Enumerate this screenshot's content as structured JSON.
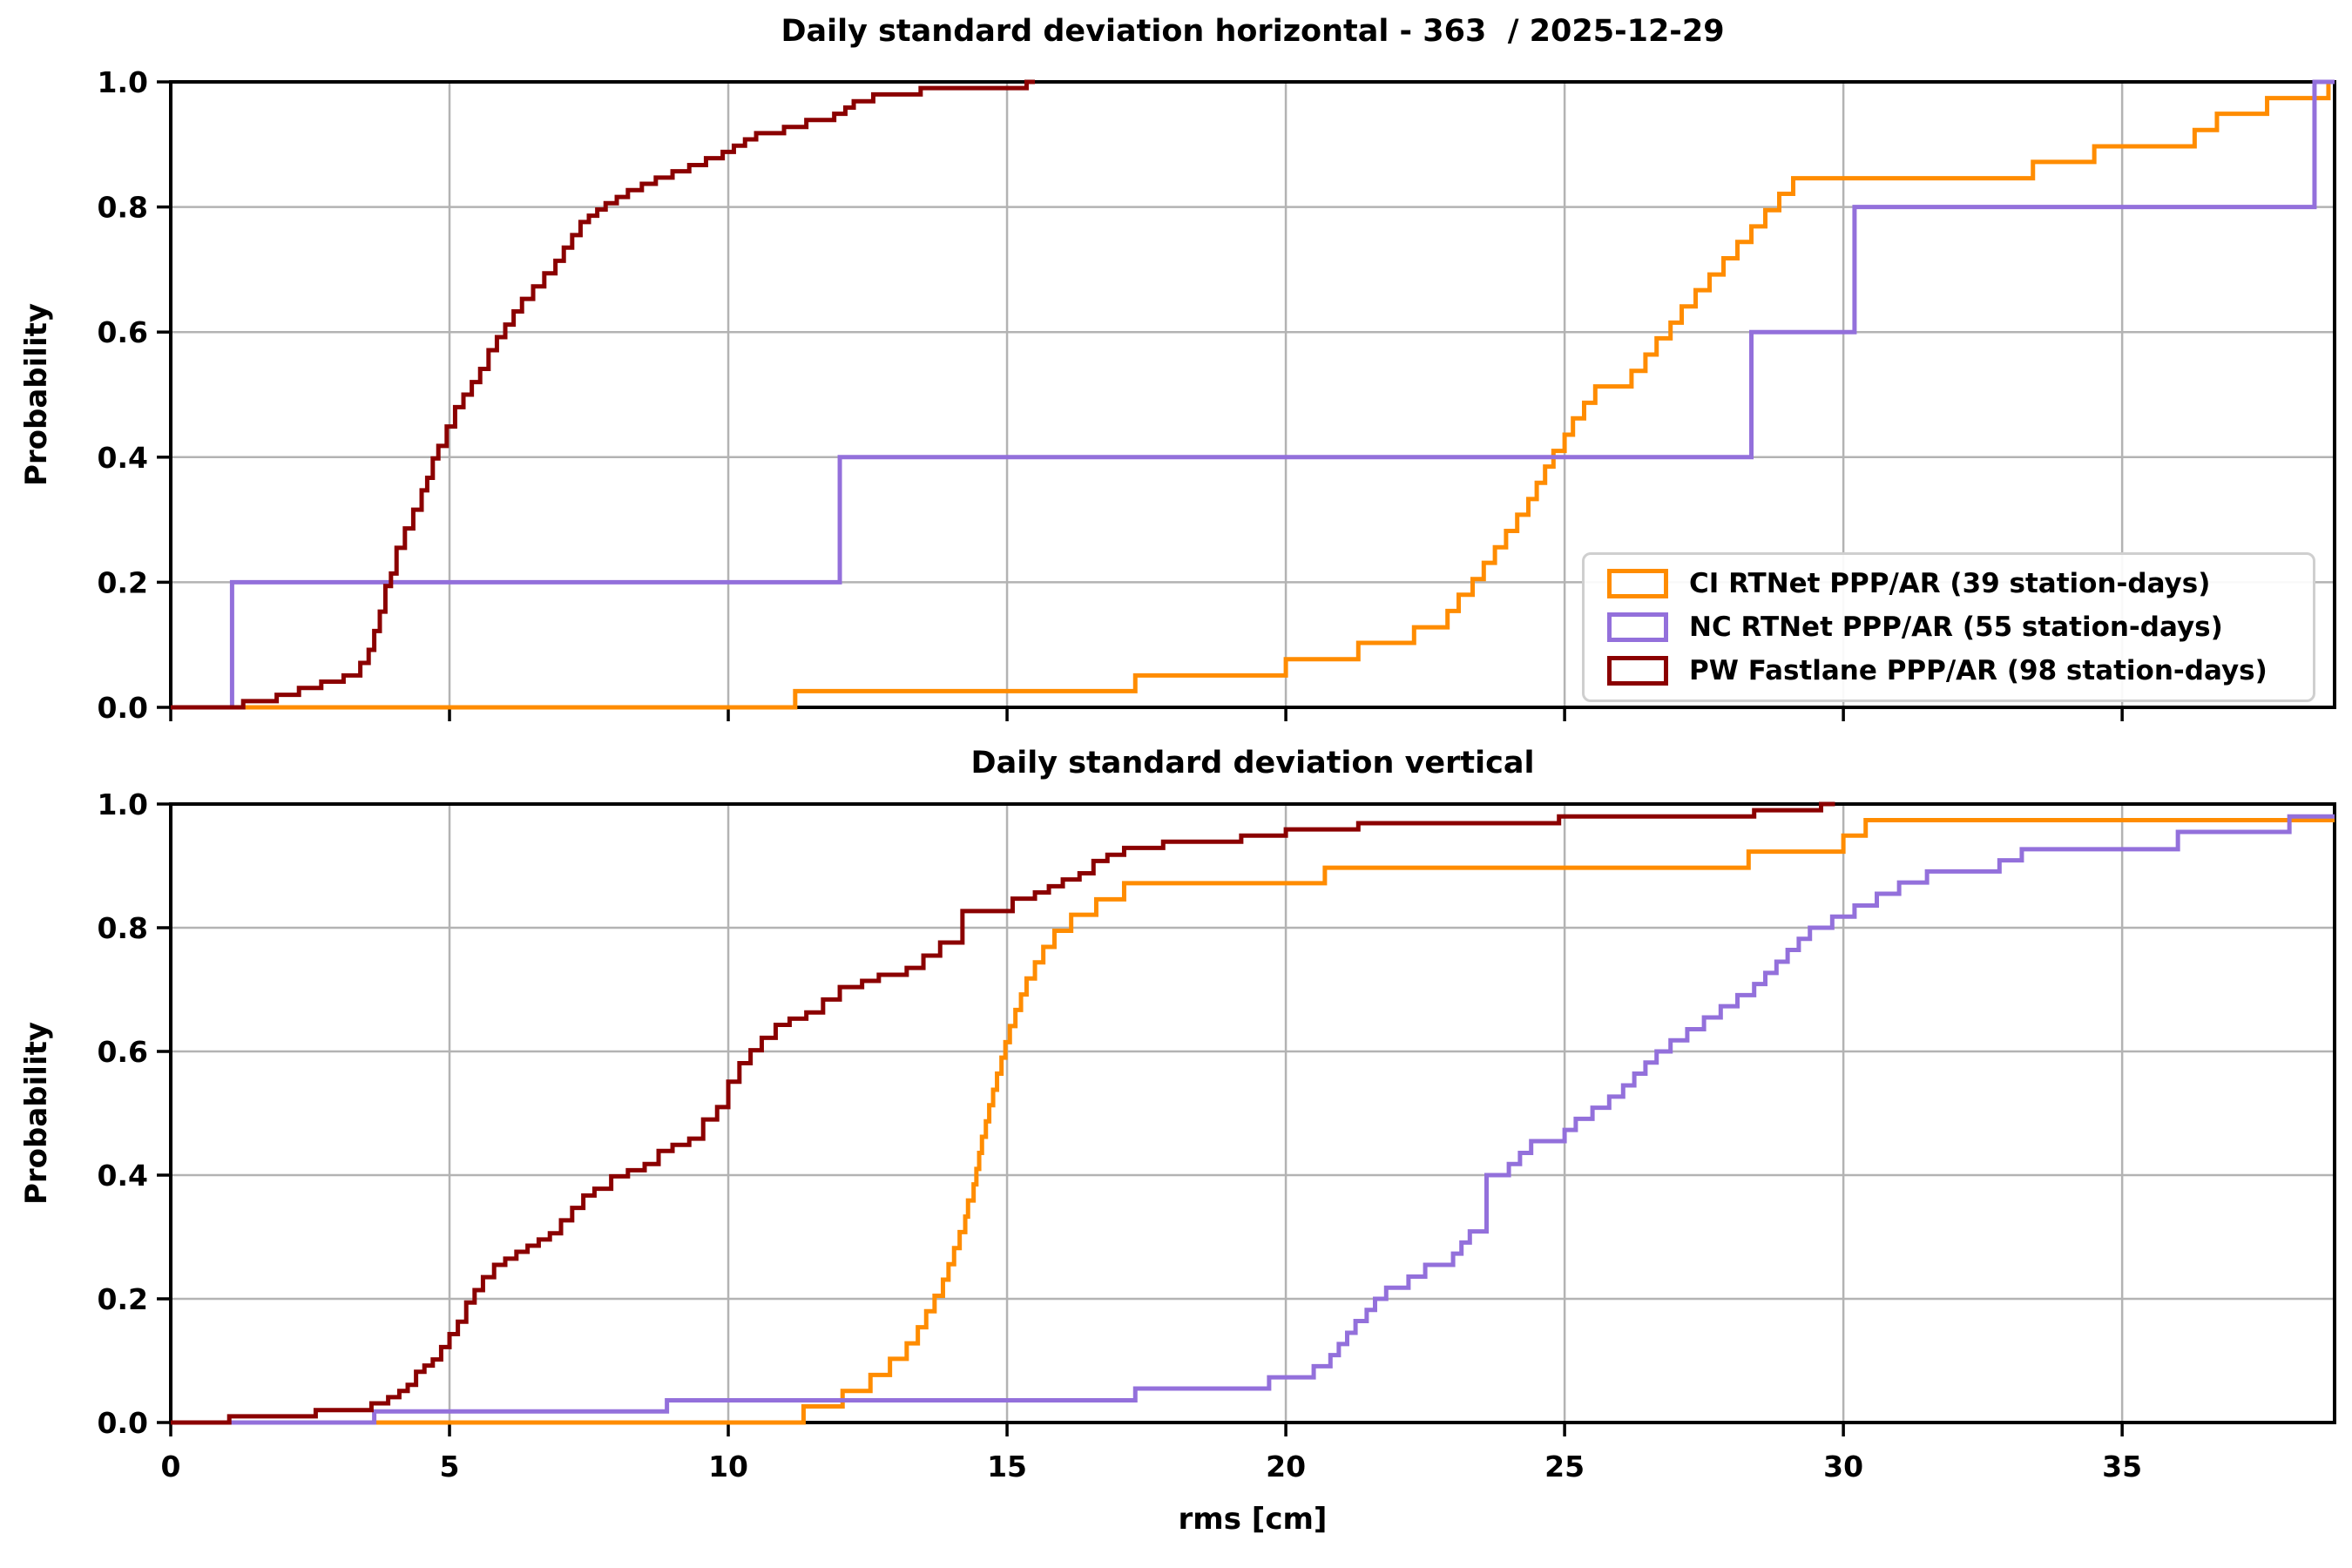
{
  "figure": {
    "xlabel": "rms [cm]",
    "ylabel": "Probability"
  },
  "legend": {
    "position": "lower-right-of-top-panel",
    "items": [
      {
        "label": "CI RTNet PPP/AR (39 station-days)",
        "color": "#FF8C00"
      },
      {
        "label": "NC RTNet PPP/AR (55 station-days)",
        "color": "#9370DB"
      },
      {
        "label": "PW Fastlane PPP/AR (98 station-days)",
        "color": "#8B0000"
      }
    ]
  },
  "chart_data": [
    {
      "type": "line",
      "subtype": "ecdf-step",
      "title": "Daily standard deviation horizontal - 363  / 2025-12-29",
      "xlabel": "",
      "ylabel": "Probability",
      "xlim": [
        0,
        38.81
      ],
      "ylim": [
        0,
        1.0
      ],
      "xticks": [
        0,
        5,
        10,
        15,
        20,
        25,
        30,
        35
      ],
      "yticks": [
        0.0,
        0.2,
        0.4,
        0.6,
        0.8,
        1.0
      ],
      "x_tick_labels_visible": false,
      "grid": true,
      "series": [
        {
          "name": "CI RTNet PPP/AR (39 station-days)",
          "color": "#FF8C00",
          "end_x": 38.81,
          "points": [
            [
              11.2,
              0.026
            ],
            [
              17.3,
              0.051
            ],
            [
              20.0,
              0.077
            ],
            [
              21.3,
              0.103
            ],
            [
              22.3,
              0.128
            ],
            [
              22.9,
              0.154
            ],
            [
              23.1,
              0.18
            ],
            [
              23.35,
              0.205
            ],
            [
              23.55,
              0.231
            ],
            [
              23.75,
              0.256
            ],
            [
              23.95,
              0.282
            ],
            [
              24.15,
              0.308
            ],
            [
              24.35,
              0.333
            ],
            [
              24.5,
              0.359
            ],
            [
              24.65,
              0.385
            ],
            [
              24.8,
              0.41
            ],
            [
              25.0,
              0.436
            ],
            [
              25.15,
              0.462
            ],
            [
              25.35,
              0.487
            ],
            [
              25.55,
              0.513
            ],
            [
              26.2,
              0.538
            ],
            [
              26.45,
              0.564
            ],
            [
              26.65,
              0.59
            ],
            [
              26.9,
              0.615
            ],
            [
              27.1,
              0.641
            ],
            [
              27.35,
              0.667
            ],
            [
              27.6,
              0.692
            ],
            [
              27.85,
              0.718
            ],
            [
              28.1,
              0.744
            ],
            [
              28.35,
              0.769
            ],
            [
              28.6,
              0.795
            ],
            [
              28.85,
              0.821
            ],
            [
              29.1,
              0.846
            ],
            [
              33.4,
              0.872
            ],
            [
              34.5,
              0.897
            ],
            [
              36.3,
              0.923
            ],
            [
              36.7,
              0.949
            ],
            [
              37.6,
              0.974
            ],
            [
              38.7,
              1.0
            ]
          ]
        },
        {
          "name": "NC RTNet PPP/AR (55 station-days)",
          "color": "#9370DB",
          "end_x": 38.81,
          "points": [
            [
              1.1,
              0.2
            ],
            [
              12.0,
              0.4
            ],
            [
              28.35,
              0.6
            ],
            [
              30.2,
              0.8
            ],
            [
              38.45,
              1.0
            ]
          ]
        },
        {
          "name": "PW Fastlane PPP/AR (98 station-days)",
          "color": "#8B0000",
          "end_x": 15.5,
          "points": [
            [
              1.3,
              0.01
            ],
            [
              1.9,
              0.02
            ],
            [
              2.3,
              0.031
            ],
            [
              2.7,
              0.041
            ],
            [
              3.1,
              0.051
            ],
            [
              3.4,
              0.071
            ],
            [
              3.55,
              0.092
            ],
            [
              3.65,
              0.122
            ],
            [
              3.75,
              0.153
            ],
            [
              3.85,
              0.194
            ],
            [
              3.95,
              0.214
            ],
            [
              4.05,
              0.255
            ],
            [
              4.2,
              0.286
            ],
            [
              4.35,
              0.316
            ],
            [
              4.5,
              0.347
            ],
            [
              4.6,
              0.367
            ],
            [
              4.7,
              0.398
            ],
            [
              4.8,
              0.418
            ],
            [
              4.95,
              0.449
            ],
            [
              5.1,
              0.48
            ],
            [
              5.25,
              0.5
            ],
            [
              5.4,
              0.52
            ],
            [
              5.55,
              0.541
            ],
            [
              5.7,
              0.571
            ],
            [
              5.85,
              0.592
            ],
            [
              6.0,
              0.612
            ],
            [
              6.15,
              0.633
            ],
            [
              6.3,
              0.653
            ],
            [
              6.5,
              0.673
            ],
            [
              6.7,
              0.694
            ],
            [
              6.9,
              0.714
            ],
            [
              7.05,
              0.735
            ],
            [
              7.2,
              0.755
            ],
            [
              7.35,
              0.776
            ],
            [
              7.5,
              0.786
            ],
            [
              7.65,
              0.796
            ],
            [
              7.8,
              0.806
            ],
            [
              8.0,
              0.816
            ],
            [
              8.2,
              0.827
            ],
            [
              8.45,
              0.837
            ],
            [
              8.7,
              0.847
            ],
            [
              9.0,
              0.857
            ],
            [
              9.3,
              0.867
            ],
            [
              9.6,
              0.878
            ],
            [
              9.9,
              0.888
            ],
            [
              10.1,
              0.898
            ],
            [
              10.3,
              0.908
            ],
            [
              10.5,
              0.918
            ],
            [
              11.0,
              0.928
            ],
            [
              11.4,
              0.939
            ],
            [
              11.9,
              0.949
            ],
            [
              12.1,
              0.959
            ],
            [
              12.25,
              0.969
            ],
            [
              12.6,
              0.98
            ],
            [
              13.45,
              0.99
            ],
            [
              15.35,
              1.0
            ]
          ]
        }
      ]
    },
    {
      "type": "line",
      "subtype": "ecdf-step",
      "title": "Daily standard deviation vertical",
      "xlabel": "rms [cm]",
      "ylabel": "Probability",
      "xlim": [
        0,
        38.81
      ],
      "ylim": [
        0,
        1.0
      ],
      "xticks": [
        0,
        5,
        10,
        15,
        20,
        25,
        30,
        35
      ],
      "yticks": [
        0.0,
        0.2,
        0.4,
        0.6,
        0.8,
        1.0
      ],
      "x_tick_labels_visible": true,
      "grid": true,
      "series": [
        {
          "name": "CI RTNet PPP/AR (39 station-days)",
          "color": "#FF8C00",
          "end_x": 38.81,
          "points": [
            [
              11.35,
              0.026
            ],
            [
              12.05,
              0.051
            ],
            [
              12.55,
              0.077
            ],
            [
              12.9,
              0.103
            ],
            [
              13.2,
              0.128
            ],
            [
              13.4,
              0.154
            ],
            [
              13.55,
              0.18
            ],
            [
              13.7,
              0.205
            ],
            [
              13.85,
              0.231
            ],
            [
              13.95,
              0.256
            ],
            [
              14.05,
              0.282
            ],
            [
              14.15,
              0.308
            ],
            [
              14.25,
              0.333
            ],
            [
              14.3,
              0.359
            ],
            [
              14.4,
              0.385
            ],
            [
              14.45,
              0.41
            ],
            [
              14.5,
              0.436
            ],
            [
              14.55,
              0.462
            ],
            [
              14.62,
              0.487
            ],
            [
              14.68,
              0.513
            ],
            [
              14.75,
              0.538
            ],
            [
              14.82,
              0.564
            ],
            [
              14.9,
              0.59
            ],
            [
              14.97,
              0.615
            ],
            [
              15.05,
              0.641
            ],
            [
              15.15,
              0.667
            ],
            [
              15.25,
              0.692
            ],
            [
              15.35,
              0.718
            ],
            [
              15.5,
              0.744
            ],
            [
              15.65,
              0.769
            ],
            [
              15.85,
              0.795
            ],
            [
              16.15,
              0.821
            ],
            [
              16.6,
              0.846
            ],
            [
              17.1,
              0.872
            ],
            [
              20.7,
              0.897
            ],
            [
              28.3,
              0.923
            ],
            [
              30.0,
              0.949
            ],
            [
              30.4,
              0.974
            ]
          ]
        },
        {
          "name": "NC RTNet PPP/AR (55 station-days)",
          "color": "#9370DB",
          "end_x": 38.81,
          "points": [
            [
              3.65,
              0.018
            ],
            [
              8.9,
              0.036
            ],
            [
              17.3,
              0.055
            ],
            [
              19.7,
              0.073
            ],
            [
              20.5,
              0.091
            ],
            [
              20.8,
              0.109
            ],
            [
              20.95,
              0.127
            ],
            [
              21.1,
              0.145
            ],
            [
              21.25,
              0.164
            ],
            [
              21.45,
              0.182
            ],
            [
              21.6,
              0.2
            ],
            [
              21.8,
              0.218
            ],
            [
              22.2,
              0.236
            ],
            [
              22.5,
              0.255
            ],
            [
              23.0,
              0.273
            ],
            [
              23.15,
              0.291
            ],
            [
              23.3,
              0.309
            ],
            [
              23.6,
              0.4
            ],
            [
              24.0,
              0.418
            ],
            [
              24.2,
              0.436
            ],
            [
              24.4,
              0.455
            ],
            [
              25.0,
              0.473
            ],
            [
              25.2,
              0.491
            ],
            [
              25.5,
              0.509
            ],
            [
              25.8,
              0.527
            ],
            [
              26.05,
              0.545
            ],
            [
              26.25,
              0.564
            ],
            [
              26.45,
              0.582
            ],
            [
              26.65,
              0.6
            ],
            [
              26.9,
              0.618
            ],
            [
              27.2,
              0.636
            ],
            [
              27.5,
              0.655
            ],
            [
              27.8,
              0.673
            ],
            [
              28.1,
              0.691
            ],
            [
              28.4,
              0.709
            ],
            [
              28.6,
              0.727
            ],
            [
              28.8,
              0.745
            ],
            [
              29.0,
              0.764
            ],
            [
              29.2,
              0.782
            ],
            [
              29.4,
              0.8
            ],
            [
              29.8,
              0.818
            ],
            [
              30.2,
              0.836
            ],
            [
              30.6,
              0.855
            ],
            [
              31.0,
              0.873
            ],
            [
              31.5,
              0.891
            ],
            [
              32.8,
              0.909
            ],
            [
              33.2,
              0.927
            ],
            [
              36.0,
              0.955
            ],
            [
              38.0,
              0.98
            ]
          ]
        },
        {
          "name": "PW Fastlane PPP/AR (98 station-days)",
          "color": "#8B0000",
          "end_x": 29.85,
          "points": [
            [
              1.05,
              0.01
            ],
            [
              2.6,
              0.02
            ],
            [
              3.6,
              0.031
            ],
            [
              3.9,
              0.041
            ],
            [
              4.1,
              0.051
            ],
            [
              4.25,
              0.061
            ],
            [
              4.4,
              0.082
            ],
            [
              4.55,
              0.092
            ],
            [
              4.7,
              0.102
            ],
            [
              4.85,
              0.122
            ],
            [
              5.0,
              0.143
            ],
            [
              5.15,
              0.163
            ],
            [
              5.3,
              0.194
            ],
            [
              5.45,
              0.214
            ],
            [
              5.6,
              0.235
            ],
            [
              5.8,
              0.255
            ],
            [
              6.0,
              0.265
            ],
            [
              6.2,
              0.276
            ],
            [
              6.4,
              0.286
            ],
            [
              6.6,
              0.296
            ],
            [
              6.8,
              0.306
            ],
            [
              7.0,
              0.327
            ],
            [
              7.2,
              0.347
            ],
            [
              7.4,
              0.367
            ],
            [
              7.6,
              0.378
            ],
            [
              7.9,
              0.398
            ],
            [
              8.2,
              0.408
            ],
            [
              8.5,
              0.418
            ],
            [
              8.75,
              0.439
            ],
            [
              9.0,
              0.449
            ],
            [
              9.3,
              0.459
            ],
            [
              9.55,
              0.49
            ],
            [
              9.8,
              0.51
            ],
            [
              10.0,
              0.551
            ],
            [
              10.2,
              0.581
            ],
            [
              10.4,
              0.602
            ],
            [
              10.6,
              0.622
            ],
            [
              10.85,
              0.643
            ],
            [
              11.1,
              0.653
            ],
            [
              11.4,
              0.663
            ],
            [
              11.7,
              0.684
            ],
            [
              12.0,
              0.704
            ],
            [
              12.4,
              0.714
            ],
            [
              12.7,
              0.724
            ],
            [
              13.2,
              0.735
            ],
            [
              13.5,
              0.755
            ],
            [
              13.8,
              0.776
            ],
            [
              14.2,
              0.827
            ],
            [
              15.1,
              0.847
            ],
            [
              15.5,
              0.857
            ],
            [
              15.75,
              0.867
            ],
            [
              16.0,
              0.878
            ],
            [
              16.3,
              0.888
            ],
            [
              16.55,
              0.908
            ],
            [
              16.8,
              0.918
            ],
            [
              17.1,
              0.929
            ],
            [
              17.8,
              0.939
            ],
            [
              19.2,
              0.949
            ],
            [
              20.0,
              0.959
            ],
            [
              21.3,
              0.969
            ],
            [
              24.9,
              0.98
            ],
            [
              28.4,
              0.99
            ],
            [
              29.6,
              1.0
            ]
          ]
        }
      ]
    }
  ],
  "style": {
    "grid_color": "#B3B3B3",
    "spine_color": "#000000",
    "background": "#FFFFFF"
  }
}
